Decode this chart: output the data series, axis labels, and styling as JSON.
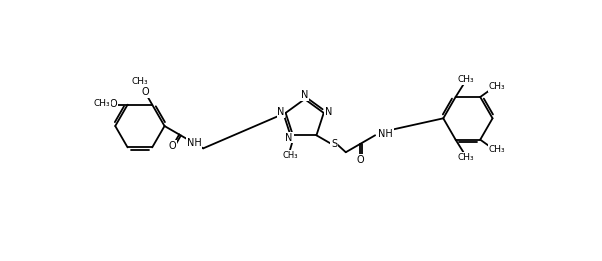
{
  "bg_color": "#ffffff",
  "line_color": "#000000",
  "lw": 1.3,
  "fs": 7.0,
  "fig_width": 6.02,
  "fig_height": 2.61,
  "dpi": 100,
  "xlim": [
    0,
    602
  ],
  "ylim": [
    0,
    261
  ]
}
